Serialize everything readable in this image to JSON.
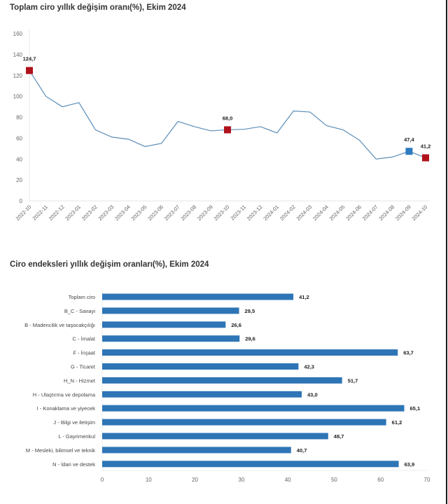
{
  "chart_data": [
    {
      "type": "line",
      "title": "Toplam ciro yıllık değişim oranı(%), Ekim 2024",
      "xlabel": "",
      "ylabel": "",
      "ylim": [
        0,
        160
      ],
      "yticks": [
        0,
        20,
        40,
        60,
        80,
        100,
        120,
        140,
        160
      ],
      "grid": false,
      "x": [
        "2022-10",
        "2022-11",
        "2022-12",
        "2023-01",
        "2023-02",
        "2023-03",
        "2023-04",
        "2023-05",
        "2023-06",
        "2023-07",
        "2023-08",
        "2023-09",
        "2023-10",
        "2023-11",
        "2023-12",
        "2024-01",
        "2024-02",
        "2024-03",
        "2024-04",
        "2024-05",
        "2024-06",
        "2024-07",
        "2024-08",
        "2024-09",
        "2024-10"
      ],
      "series": [
        {
          "name": "Toplam ciro",
          "color": "#5b8db8",
          "values": [
            124.7,
            100,
            90,
            94,
            68,
            61,
            59,
            52,
            55,
            76,
            71,
            67,
            68.0,
            68.5,
            71,
            65,
            86,
            85,
            72,
            68,
            58,
            40,
            42,
            47.4,
            41.2
          ]
        }
      ],
      "highlighted_points": [
        {
          "x": "2022-10",
          "label": "124,7",
          "color": "#b0121b"
        },
        {
          "x": "2023-10",
          "label": "68,0",
          "color": "#b0121b"
        },
        {
          "x": "2024-09",
          "label": "47,4",
          "color": "#2e7bc0"
        },
        {
          "x": "2024-10",
          "label": "41,2",
          "color": "#b0121b"
        }
      ]
    },
    {
      "type": "bar",
      "orientation": "horizontal",
      "title": "Ciro endeksleri yıllık değişim oranları(%), Ekim 2024",
      "xlabel": "",
      "ylabel": "",
      "xlim": [
        0,
        70
      ],
      "xticks": [
        0,
        10,
        20,
        30,
        40,
        50,
        60,
        70
      ],
      "grid": false,
      "color": "#2e75b6",
      "categories": [
        "Toplam ciro",
        "B_C - Sanayi",
        "B - Madencilik ve taşocakçılığı",
        "C - İmalat",
        "F - İnşaat",
        "G - Ticaret",
        "H_N - Hizmet",
        "H - Ulaştırma ve depolama",
        "I - Konaklama ve yiyecek",
        "J - Bilgi ve iletişim",
        "L - Gayrimenkul",
        "M - Mesleki, bilimsel ve teknik",
        "N - İdari ve destek"
      ],
      "values": [
        41.2,
        29.5,
        26.6,
        29.6,
        63.7,
        42.3,
        51.7,
        43.0,
        65.1,
        61.2,
        48.7,
        40.7,
        63.9
      ],
      "labels": [
        "41,2",
        "29,5",
        "26,6",
        "29,6",
        "63,7",
        "42,3",
        "51,7",
        "43,0",
        "65,1",
        "61,2",
        "48,7",
        "40,7",
        "63,9"
      ]
    }
  ]
}
